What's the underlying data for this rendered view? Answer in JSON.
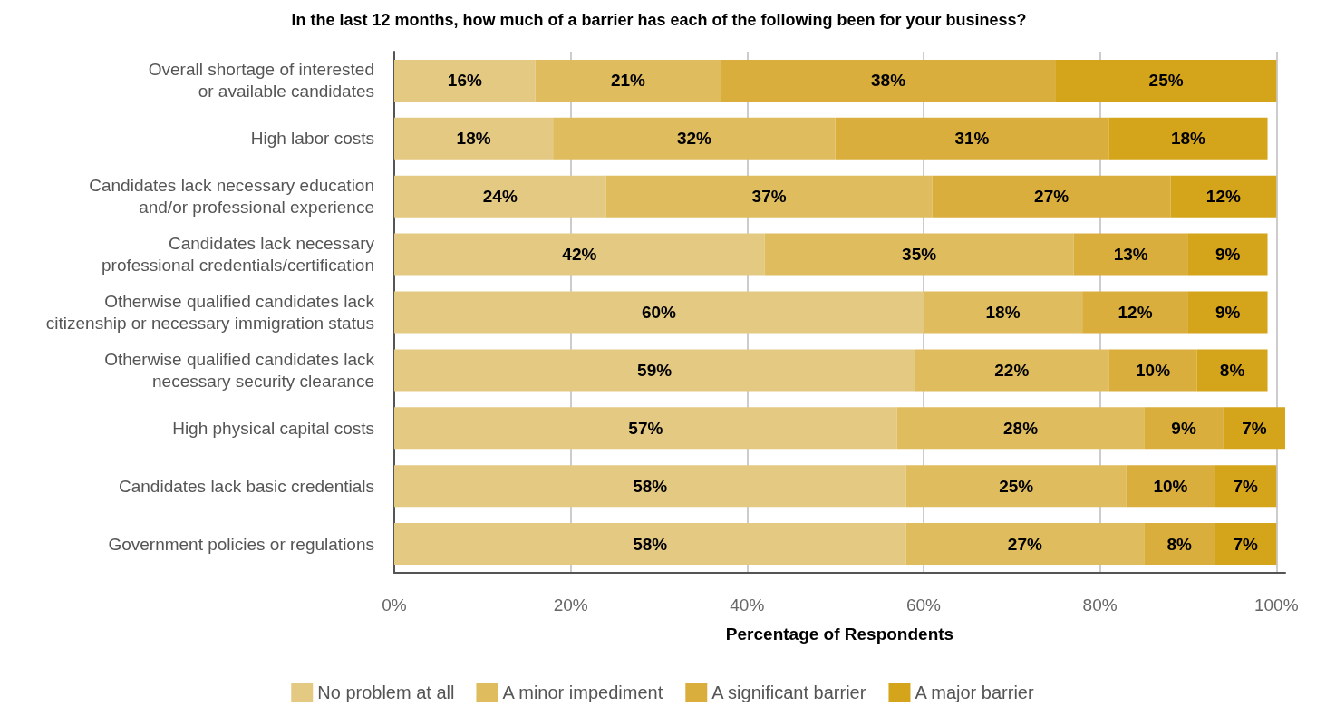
{
  "chart_data": {
    "type": "bar",
    "orientation": "horizontal",
    "stacked": true,
    "title": "In the last 12 months, how much of a barrier has each of the following been for your business?",
    "xlabel": "Percentage of Respondents",
    "categories": [
      "Overall shortage of interested\nor available candidates",
      "High labor costs",
      "Candidates lack necessary education\nand/or professional experience",
      "Candidates lack necessary\nprofessional credentials/certification",
      "Otherwise qualified candidates lack\ncitizenship or necessary immigration status",
      "Otherwise qualified candidates lack\nnecessary security clearance",
      "High physical capital costs",
      "Candidates lack basic credentials",
      "Government policies or regulations"
    ],
    "series": [
      {
        "name": "No problem at all",
        "color": "#e4c983",
        "values": [
          16,
          18,
          24,
          42,
          60,
          59,
          57,
          58,
          58
        ],
        "value_labels": [
          "16%",
          "18%",
          "24%",
          "42%",
          "60%",
          "59%",
          "57%",
          "58%",
          "58%"
        ]
      },
      {
        "name": "A minor impediment",
        "color": "#dfbc5e",
        "values": [
          21,
          32,
          37,
          35,
          18,
          22,
          28,
          25,
          27
        ],
        "value_labels": [
          "21%",
          "32%",
          "37%",
          "35%",
          "18%",
          "22%",
          "28%",
          "25%",
          "27%"
        ]
      },
      {
        "name": "A significant barrier",
        "color": "#d9ae3c",
        "values": [
          38,
          31,
          27,
          13,
          12,
          10,
          9,
          10,
          8
        ],
        "value_labels": [
          "38%",
          "31%",
          "27%",
          "13%",
          "12%",
          "10%",
          "9%",
          "10%",
          "8%"
        ]
      },
      {
        "name": "A major barrier",
        "color": "#d4a41b",
        "values": [
          25,
          18,
          12,
          9,
          9,
          8,
          7,
          7,
          7
        ],
        "value_labels": [
          "25%",
          "18%",
          "12%",
          "9%",
          "9%",
          "8%",
          "7%",
          "7%",
          "7%"
        ]
      }
    ],
    "xlim": [
      0,
      101
    ],
    "xticks": [
      {
        "value": 0,
        "label": "0%"
      },
      {
        "value": 20,
        "label": "20%"
      },
      {
        "value": 40,
        "label": "40%"
      },
      {
        "value": 60,
        "label": "60%"
      },
      {
        "value": 80,
        "label": "80%"
      },
      {
        "value": 100,
        "label": "100%"
      }
    ],
    "grid": "x",
    "legend": "bottom"
  }
}
